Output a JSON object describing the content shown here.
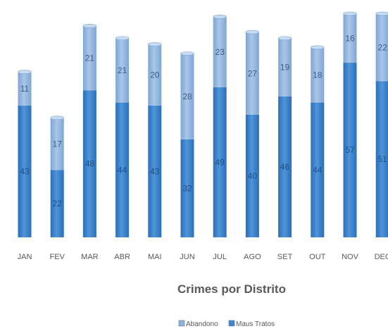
{
  "chart_data": {
    "type": "bar",
    "stacked": true,
    "title": "Crimes por Distrito",
    "categories": [
      "JAN",
      "FEV",
      "MAR",
      "ABR",
      "MAI",
      "JUN",
      "JUL",
      "AGO",
      "SET",
      "OUT",
      "NOV",
      "DEC"
    ],
    "series": [
      {
        "name": "Maus Tratos",
        "values": [
          43,
          22,
          48,
          44,
          43,
          32,
          49,
          40,
          46,
          44,
          57,
          51
        ],
        "color": "#3f86cf"
      },
      {
        "name": "Abandono",
        "values": [
          11,
          17,
          21,
          21,
          20,
          28,
          23,
          27,
          19,
          18,
          16,
          22
        ],
        "color": "#8db2db"
      }
    ],
    "ylim": [
      0,
      76
    ],
    "grid": false,
    "data_labels": true,
    "legend_position": "bottom"
  }
}
